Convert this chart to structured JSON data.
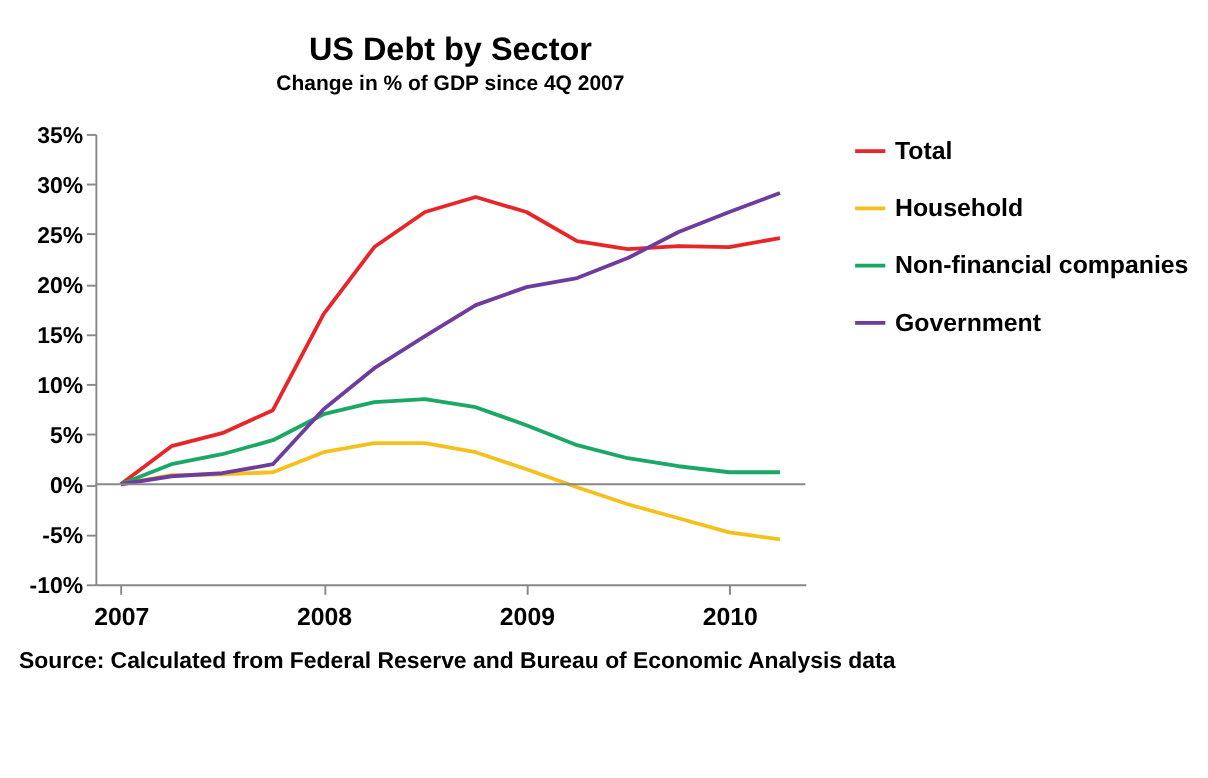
{
  "chart_data": {
    "type": "line",
    "title": "US Debt by Sector",
    "subtitle": "Change in % of GDP since 4Q 2007",
    "x": [
      2007,
      2007.25,
      2007.5,
      2007.75,
      2008,
      2008.25,
      2008.5,
      2008.75,
      2009,
      2009.25,
      2009.5,
      2009.75,
      2010,
      2010.25
    ],
    "series": [
      {
        "name": "Total",
        "color": "#e8262a",
        "values": [
          0,
          3.8,
          5.1,
          7.4,
          17.0,
          23.7,
          27.2,
          28.7,
          27.2,
          24.3,
          23.5,
          23.8,
          23.7,
          24.6
        ]
      },
      {
        "name": "Household",
        "color": "#f5c01c",
        "values": [
          0,
          0.9,
          1.0,
          1.2,
          3.2,
          4.1,
          4.1,
          3.2,
          1.5,
          -0.3,
          -2.0,
          -3.4,
          -4.8,
          -5.5
        ]
      },
      {
        "name": "Non-financial companies",
        "color": "#1aa864",
        "values": [
          0,
          2.0,
          3.0,
          4.4,
          7.0,
          8.2,
          8.5,
          7.7,
          5.9,
          3.9,
          2.6,
          1.8,
          1.2,
          1.2
        ]
      },
      {
        "name": "Government",
        "color": "#6f3b9e",
        "values": [
          0,
          0.8,
          1.1,
          2.0,
          7.5,
          11.6,
          14.8,
          17.9,
          19.7,
          20.6,
          22.6,
          25.2,
          27.2,
          29.1
        ]
      }
    ],
    "xlim": [
      2006.875,
      2010.375
    ],
    "xticks": [
      2007,
      2008,
      2009,
      2010
    ],
    "ylim": [
      -10,
      35
    ],
    "yticks": [
      {
        "value": -10,
        "label": "-10%"
      },
      {
        "value": -5,
        "label": "-5%"
      },
      {
        "value": 0,
        "label": "0%"
      },
      {
        "value": 5,
        "label": "5%"
      },
      {
        "value": 10,
        "label": "10%"
      },
      {
        "value": 15,
        "label": "15%"
      },
      {
        "value": 20,
        "label": "20%"
      },
      {
        "value": 25,
        "label": "25%"
      },
      {
        "value": 30,
        "label": "30%"
      },
      {
        "value": 35,
        "label": "35%"
      }
    ],
    "grid": false,
    "ref_lines": [
      {
        "axis": "y",
        "value": 0,
        "color": "#888888"
      }
    ],
    "legend": "right",
    "marker": "none",
    "line_style": "solid",
    "annotations": [
      "Source: Calculated from Federal Reserve and Bureau of Economic Analysis data"
    ]
  }
}
